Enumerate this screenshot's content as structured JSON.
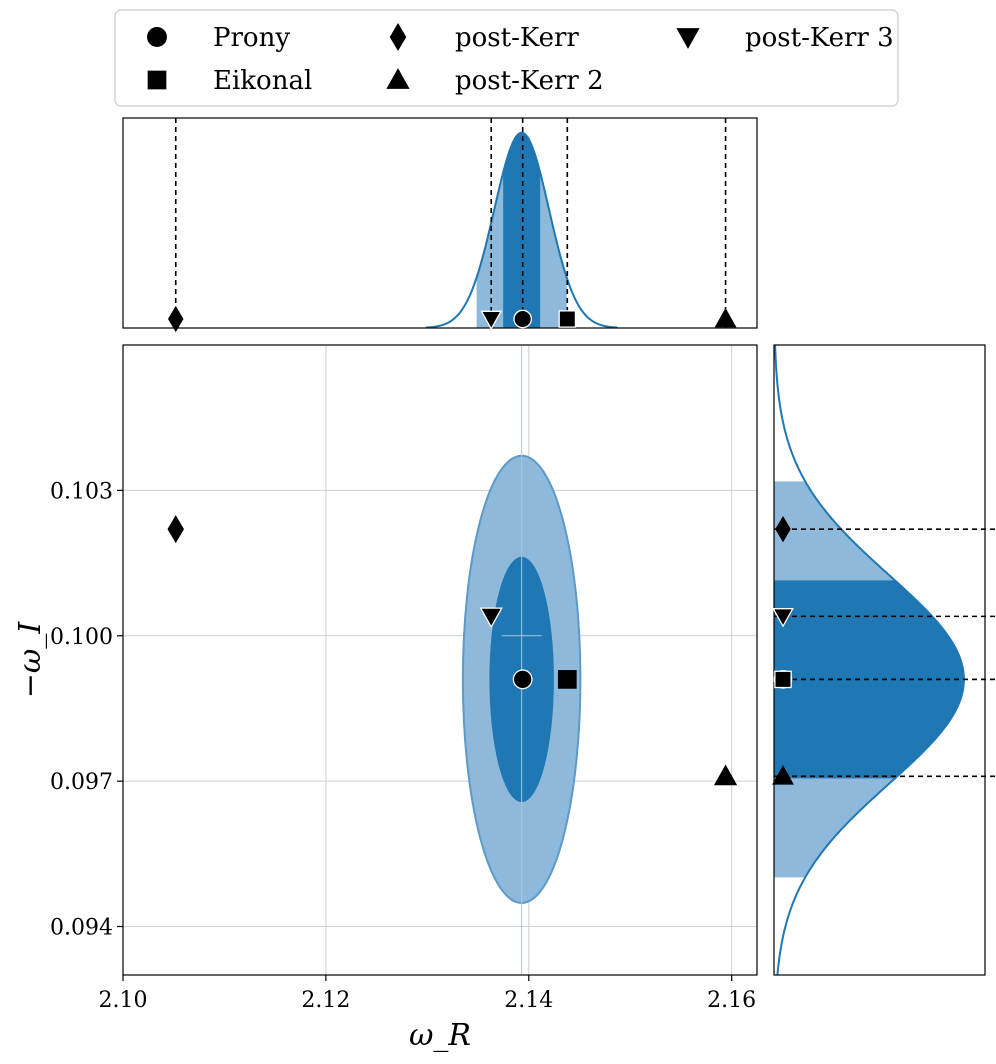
{
  "chart_data": {
    "type": "scatter",
    "subtype": "joint-posterior-with-marginals",
    "xlabel": "ω_R",
    "ylabel": "−ω_I",
    "xlim": [
      2.1,
      2.1625
    ],
    "ylim": [
      0.093,
      0.106
    ],
    "xticks": [
      2.1,
      2.12,
      2.14,
      2.16
    ],
    "xtick_labels": [
      "2.10",
      "2.12",
      "2.14",
      "2.16"
    ],
    "yticks": [
      0.094,
      0.097,
      0.1,
      0.103
    ],
    "ytick_labels": [
      "0.094",
      "0.097",
      "0.100",
      "0.103"
    ],
    "grid": true,
    "legend_position": "top",
    "posterior": {
      "mean_x": 2.1393,
      "mean_y": 0.0991,
      "sigma_x": 0.0027,
      "sigma_y": 0.00215,
      "credible_levels": [
        "50%",
        "90%"
      ],
      "colors": {
        "inner": "#1f77b4",
        "outer": "#8fb9da"
      }
    },
    "points": [
      {
        "name": "Prony",
        "marker": "circle",
        "x": 2.1394,
        "y": 0.0991,
        "face": "#000000"
      },
      {
        "name": "Eikonal",
        "marker": "square",
        "x": 2.1438,
        "y": 0.0991,
        "face": "#000000"
      },
      {
        "name": "post-Kerr",
        "marker": "diamond",
        "x": 2.1052,
        "y": 0.1022,
        "face": "#000000"
      },
      {
        "name": "post-Kerr 2",
        "marker": "triangle-up",
        "x": 2.1594,
        "y": 0.0971,
        "face": "#000000"
      },
      {
        "name": "post-Kerr 3",
        "marker": "triangle-down",
        "x": 2.1363,
        "y": 0.1004,
        "face": "#000000"
      }
    ],
    "legend": [
      {
        "label": "Prony",
        "marker": "circle"
      },
      {
        "label": "Eikonal",
        "marker": "square"
      },
      {
        "label": "post-Kerr",
        "marker": "diamond"
      },
      {
        "label": "post-Kerr 2",
        "marker": "triangle-up"
      },
      {
        "label": "post-Kerr 3",
        "marker": "triangle-down"
      }
    ]
  }
}
